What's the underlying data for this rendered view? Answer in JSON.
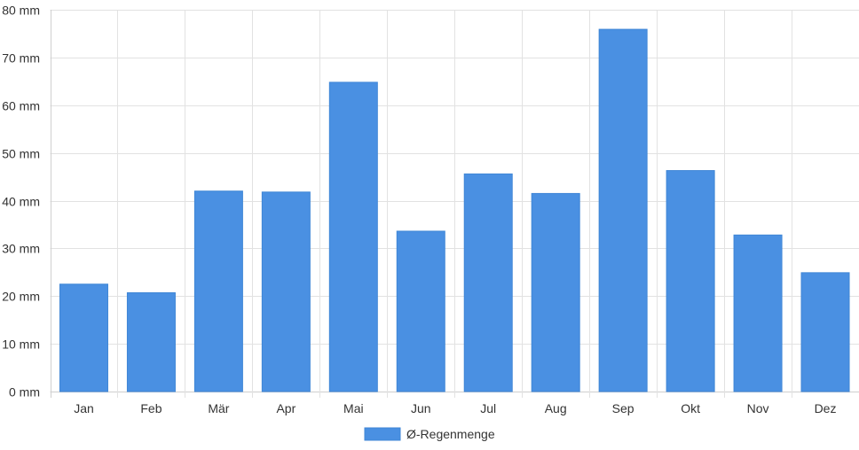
{
  "chart_data": {
    "type": "bar",
    "categories": [
      "Jan",
      "Feb",
      "Mär",
      "Apr",
      "Mai",
      "Jun",
      "Jul",
      "Aug",
      "Sep",
      "Okt",
      "Nov",
      "Dez"
    ],
    "series": [
      {
        "name": "Ø-Regenmenge",
        "values": [
          22.5,
          20.7,
          42.0,
          41.8,
          64.8,
          33.6,
          45.6,
          41.5,
          75.9,
          46.3,
          32.8,
          24.9
        ],
        "color": "#4a90e2"
      }
    ],
    "ylim": [
      0,
      80
    ],
    "yticks": [
      0,
      10,
      20,
      30,
      40,
      50,
      60,
      70,
      80
    ],
    "ytick_labels": [
      "0 mm",
      "10 mm",
      "20 mm",
      "30 mm",
      "40 mm",
      "50 mm",
      "60 mm",
      "70 mm",
      "80 mm"
    ],
    "grid": true,
    "legend_position": "bottom"
  }
}
